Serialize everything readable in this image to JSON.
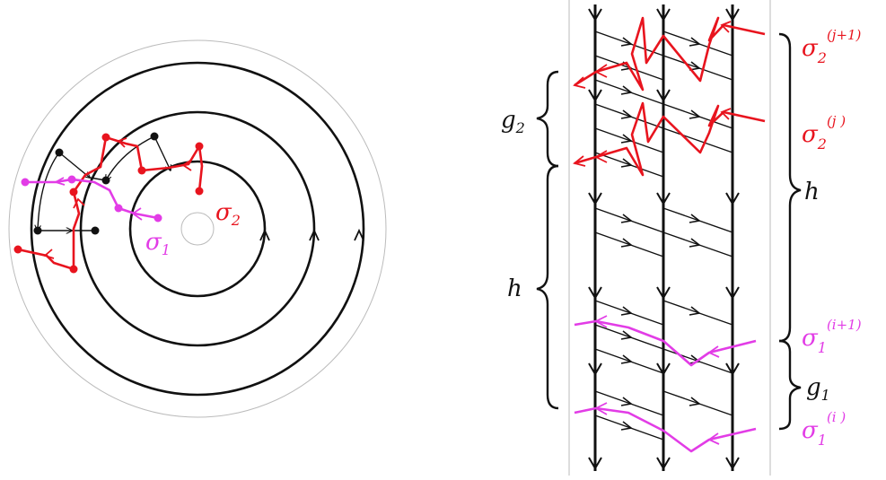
{
  "colors": {
    "red": "#e8141e",
    "magenta": "#e23ce6",
    "black": "#111111",
    "gray": "#bbbbbb"
  },
  "left": {
    "sigma1": {
      "base": "σ",
      "sub": "1"
    },
    "sigma2": {
      "base": "σ",
      "sub": "2"
    }
  },
  "right": {
    "g2": {
      "base": "g",
      "sub": "2"
    },
    "g1": {
      "base": "g",
      "sub": "1"
    },
    "h_left": "h",
    "h_right": "h",
    "sigma2_jp1": {
      "base": "σ",
      "sub": "2",
      "sup": "(j+1)"
    },
    "sigma2_j": {
      "base": "σ",
      "sub": "2",
      "sup": "(j )"
    },
    "sigma1_ip1": {
      "base": "σ",
      "sub": "1",
      "sup": "(i+1)"
    },
    "sigma1_i": {
      "base": "σ",
      "sub": "1",
      "sup": "(i )"
    }
  }
}
